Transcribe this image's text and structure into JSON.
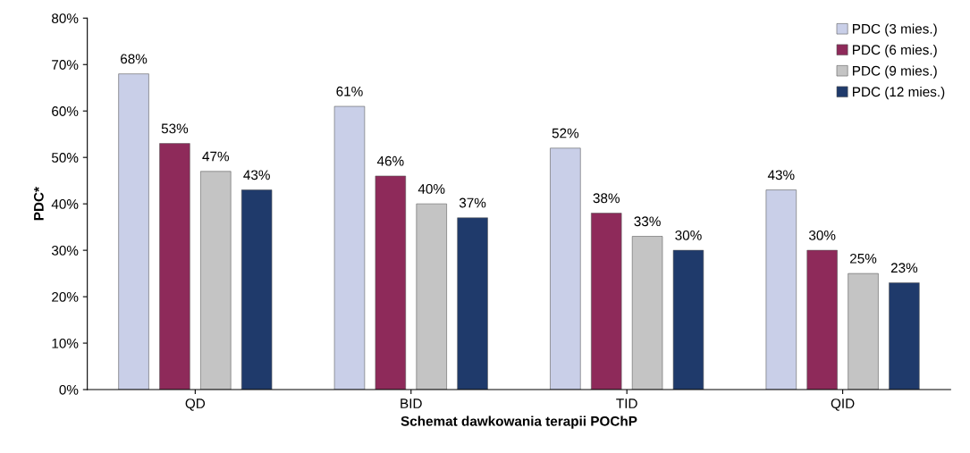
{
  "chart_data": {
    "type": "bar",
    "xlabel": "Schemat dawkowania terapii POChP",
    "ylabel": "PDC*",
    "categories": [
      "QD",
      "BID",
      "TID",
      "QID"
    ],
    "series": [
      {
        "name": "PDC (3 mies.)",
        "color": "#c9cfe8",
        "values": [
          68,
          61,
          52,
          43
        ],
        "value_labels": [
          "68%",
          "61%",
          "52%",
          "43%"
        ]
      },
      {
        "name": "PDC (6 mies.)",
        "color": "#8e2a5a",
        "values": [
          53,
          46,
          38,
          30
        ],
        "value_labels": [
          "53%",
          "46%",
          "38%",
          "30%"
        ]
      },
      {
        "name": "PDC (9 mies.)",
        "color": "#c4c4c4",
        "values": [
          47,
          40,
          33,
          25
        ],
        "value_labels": [
          "47%",
          "40%",
          "33%",
          "25%"
        ]
      },
      {
        "name": "PDC (12 mies.)",
        "color": "#1f3a6b",
        "values": [
          43,
          37,
          30,
          23
        ],
        "value_labels": [
          "43%",
          "37%",
          "30%",
          "23%"
        ]
      }
    ],
    "ylim": [
      0,
      80
    ],
    "yticks": [
      {
        "value": 0,
        "label": "0%"
      },
      {
        "value": 10,
        "label": "10%"
      },
      {
        "value": 20,
        "label": "20%"
      },
      {
        "value": 30,
        "label": "30%"
      },
      {
        "value": 40,
        "label": "40%"
      },
      {
        "value": 50,
        "label": "50%"
      },
      {
        "value": 60,
        "label": "60%"
      },
      {
        "value": 70,
        "label": "70%"
      },
      {
        "value": 80,
        "label": "80%"
      }
    ],
    "legend": "top right",
    "grid": false
  }
}
